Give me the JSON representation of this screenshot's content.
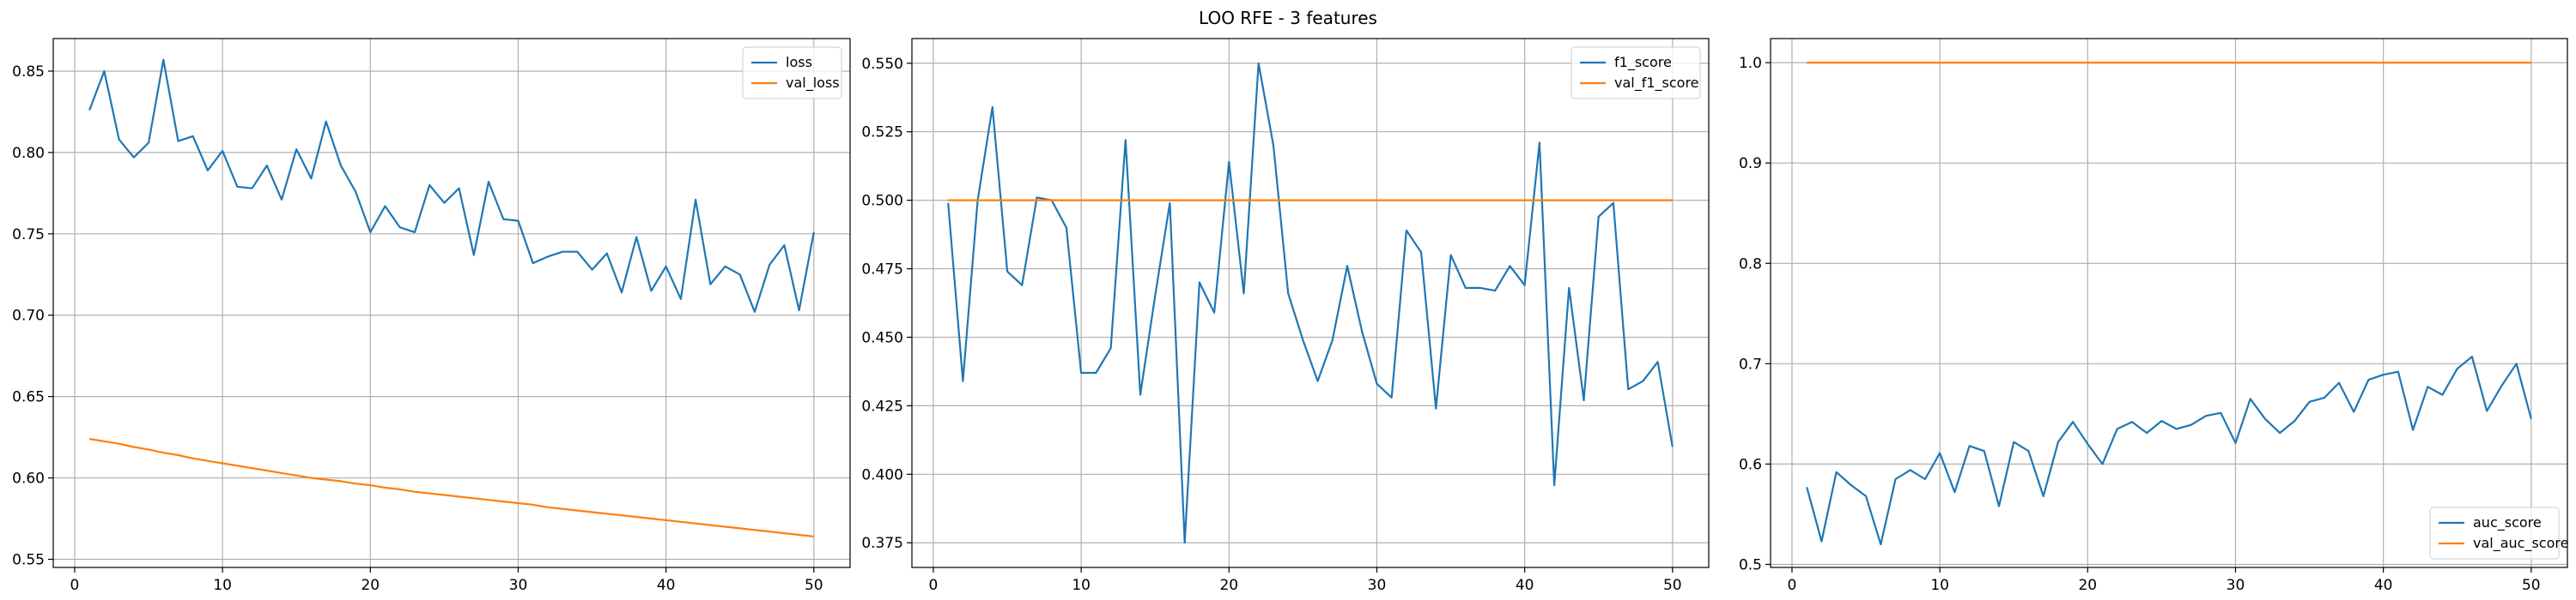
{
  "figure": {
    "title": "LOO RFE - 3 features"
  },
  "colors": {
    "blue": "#1f77b4",
    "orange": "#ff7f0e"
  },
  "chart_data": [
    {
      "type": "line",
      "title": "",
      "xlabel": "",
      "ylabel": "",
      "xlim": [
        -1.45,
        52.45
      ],
      "ylim": [
        0.545,
        0.87
      ],
      "xticks": [
        0,
        10,
        20,
        30,
        40,
        50
      ],
      "yticks": [
        0.55,
        0.6,
        0.65,
        0.7,
        0.75,
        0.8,
        0.85
      ],
      "ytick_labels": [
        "0.55",
        "0.60",
        "0.65",
        "0.70",
        "0.75",
        "0.80",
        "0.85"
      ],
      "grid": true,
      "legend": "top-right",
      "series": [
        {
          "name": "loss",
          "color": "#1f77b4",
          "x": [
            1,
            2,
            3,
            4,
            5,
            6,
            7,
            8,
            9,
            10,
            11,
            12,
            13,
            14,
            15,
            16,
            17,
            18,
            19,
            20,
            21,
            22,
            23,
            24,
            25,
            26,
            27,
            28,
            29,
            30,
            31,
            32,
            33,
            34,
            35,
            36,
            37,
            38,
            39,
            40,
            41,
            42,
            43,
            44,
            45,
            46,
            47,
            48,
            49,
            50
          ],
          "values": [
            0.826,
            0.85,
            0.808,
            0.797,
            0.806,
            0.857,
            0.807,
            0.81,
            0.789,
            0.801,
            0.779,
            0.778,
            0.792,
            0.771,
            0.802,
            0.784,
            0.819,
            0.792,
            0.776,
            0.751,
            0.767,
            0.754,
            0.751,
            0.78,
            0.769,
            0.778,
            0.737,
            0.782,
            0.759,
            0.758,
            0.732,
            0.736,
            0.739,
            0.739,
            0.728,
            0.738,
            0.714,
            0.748,
            0.715,
            0.73,
            0.71,
            0.771,
            0.719,
            0.73,
            0.725,
            0.702,
            0.731,
            0.743,
            0.703,
            0.751
          ]
        },
        {
          "name": "val_loss",
          "color": "#ff7f0e",
          "x": [
            1,
            2,
            3,
            4,
            5,
            6,
            7,
            8,
            9,
            10,
            11,
            12,
            13,
            14,
            15,
            16,
            17,
            18,
            19,
            20,
            21,
            22,
            23,
            24,
            25,
            26,
            27,
            28,
            29,
            30,
            31,
            32,
            33,
            34,
            35,
            36,
            37,
            38,
            39,
            40,
            41,
            42,
            43,
            44,
            45,
            46,
            47,
            48,
            49,
            50
          ],
          "values": [
            0.624,
            0.6225,
            0.621,
            0.619,
            0.6175,
            0.6155,
            0.614,
            0.612,
            0.6105,
            0.609,
            0.6075,
            0.606,
            0.6045,
            0.603,
            0.6015,
            0.6,
            0.599,
            0.598,
            0.5965,
            0.5955,
            0.594,
            0.593,
            0.5915,
            0.5905,
            0.5895,
            0.5885,
            0.5875,
            0.5865,
            0.5855,
            0.5845,
            0.5835,
            0.582,
            0.581,
            0.58,
            0.579,
            0.578,
            0.577,
            0.576,
            0.575,
            0.574,
            0.573,
            0.572,
            0.571,
            0.57,
            0.569,
            0.568,
            0.567,
            0.566,
            0.565,
            0.564
          ]
        }
      ]
    },
    {
      "type": "line",
      "title": "",
      "xlabel": "",
      "ylabel": "",
      "xlim": [
        -1.45,
        52.45
      ],
      "ylim": [
        0.366,
        0.559
      ],
      "xticks": [
        0,
        10,
        20,
        30,
        40,
        50
      ],
      "yticks": [
        0.375,
        0.4,
        0.425,
        0.45,
        0.475,
        0.5,
        0.525,
        0.55
      ],
      "ytick_labels": [
        "0.375",
        "0.400",
        "0.425",
        "0.450",
        "0.475",
        "0.500",
        "0.525",
        "0.550"
      ],
      "grid": true,
      "legend": "top-right",
      "series": [
        {
          "name": "f1_score",
          "color": "#1f77b4",
          "x": [
            1,
            2,
            3,
            4,
            5,
            6,
            7,
            8,
            9,
            10,
            11,
            12,
            13,
            14,
            15,
            16,
            17,
            18,
            19,
            20,
            21,
            22,
            23,
            24,
            25,
            26,
            27,
            28,
            29,
            30,
            31,
            32,
            33,
            34,
            35,
            36,
            37,
            38,
            39,
            40,
            41,
            42,
            43,
            44,
            45,
            46,
            47,
            48,
            49,
            50
          ],
          "values": [
            0.499,
            0.434,
            0.5,
            0.534,
            0.474,
            0.469,
            0.501,
            0.5,
            0.49,
            0.437,
            0.437,
            0.446,
            0.522,
            0.429,
            0.465,
            0.499,
            0.375,
            0.47,
            0.459,
            0.514,
            0.466,
            0.55,
            0.52,
            0.466,
            0.449,
            0.434,
            0.449,
            0.476,
            0.452,
            0.433,
            0.428,
            0.489,
            0.481,
            0.424,
            0.48,
            0.468,
            0.468,
            0.467,
            0.476,
            0.469,
            0.521,
            0.396,
            0.468,
            0.427,
            0.494,
            0.499,
            0.431,
            0.434,
            0.441,
            0.41
          ]
        },
        {
          "name": "val_f1_score",
          "color": "#ff7f0e",
          "x": [
            1,
            2,
            3,
            4,
            5,
            6,
            7,
            8,
            9,
            10,
            11,
            12,
            13,
            14,
            15,
            16,
            17,
            18,
            19,
            20,
            21,
            22,
            23,
            24,
            25,
            26,
            27,
            28,
            29,
            30,
            31,
            32,
            33,
            34,
            35,
            36,
            37,
            38,
            39,
            40,
            41,
            42,
            43,
            44,
            45,
            46,
            47,
            48,
            49,
            50
          ],
          "values": [
            0.5,
            0.5,
            0.5,
            0.5,
            0.5,
            0.5,
            0.5,
            0.5,
            0.5,
            0.5,
            0.5,
            0.5,
            0.5,
            0.5,
            0.5,
            0.5,
            0.5,
            0.5,
            0.5,
            0.5,
            0.5,
            0.5,
            0.5,
            0.5,
            0.5,
            0.5,
            0.5,
            0.5,
            0.5,
            0.5,
            0.5,
            0.5,
            0.5,
            0.5,
            0.5,
            0.5,
            0.5,
            0.5,
            0.5,
            0.5,
            0.5,
            0.5,
            0.5,
            0.5,
            0.5,
            0.5,
            0.5,
            0.5,
            0.5,
            0.5
          ]
        }
      ]
    },
    {
      "type": "line",
      "title": "",
      "xlabel": "",
      "ylabel": "",
      "xlim": [
        -1.45,
        52.45
      ],
      "ylim": [
        0.497,
        1.024
      ],
      "xticks": [
        0,
        10,
        20,
        30,
        40,
        50
      ],
      "yticks": [
        0.5,
        0.6,
        0.7,
        0.8,
        0.9,
        1.0
      ],
      "ytick_labels": [
        "0.5",
        "0.6",
        "0.7",
        "0.8",
        "0.9",
        "1.0"
      ],
      "grid": true,
      "legend": "bottom-right",
      "series": [
        {
          "name": "auc_score",
          "color": "#1f77b4",
          "x": [
            1,
            2,
            3,
            4,
            5,
            6,
            7,
            8,
            9,
            10,
            11,
            12,
            13,
            14,
            15,
            16,
            17,
            18,
            19,
            20,
            21,
            22,
            23,
            24,
            25,
            26,
            27,
            28,
            29,
            30,
            31,
            32,
            33,
            34,
            35,
            36,
            37,
            38,
            39,
            40,
            41,
            42,
            43,
            44,
            45,
            46,
            47,
            48,
            49,
            50
          ],
          "values": [
            0.577,
            0.523,
            0.592,
            0.579,
            0.568,
            0.52,
            0.585,
            0.594,
            0.585,
            0.611,
            0.572,
            0.618,
            0.613,
            0.558,
            0.622,
            0.613,
            0.568,
            0.622,
            0.642,
            0.62,
            0.6,
            0.635,
            0.642,
            0.631,
            0.643,
            0.635,
            0.639,
            0.648,
            0.651,
            0.621,
            0.665,
            0.645,
            0.631,
            0.643,
            0.662,
            0.666,
            0.681,
            0.652,
            0.684,
            0.689,
            0.692,
            0.634,
            0.677,
            0.669,
            0.695,
            0.707,
            0.653,
            0.678,
            0.7,
            0.645
          ]
        },
        {
          "name": "val_auc_score",
          "color": "#ff7f0e",
          "x": [
            1,
            2,
            3,
            4,
            5,
            6,
            7,
            8,
            9,
            10,
            11,
            12,
            13,
            14,
            15,
            16,
            17,
            18,
            19,
            20,
            21,
            22,
            23,
            24,
            25,
            26,
            27,
            28,
            29,
            30,
            31,
            32,
            33,
            34,
            35,
            36,
            37,
            38,
            39,
            40,
            41,
            42,
            43,
            44,
            45,
            46,
            47,
            48,
            49,
            50
          ],
          "values": [
            1.0,
            1.0,
            1.0,
            1.0,
            1.0,
            1.0,
            1.0,
            1.0,
            1.0,
            1.0,
            1.0,
            1.0,
            1.0,
            1.0,
            1.0,
            1.0,
            1.0,
            1.0,
            1.0,
            1.0,
            1.0,
            1.0,
            1.0,
            1.0,
            1.0,
            1.0,
            1.0,
            1.0,
            1.0,
            1.0,
            1.0,
            1.0,
            1.0,
            1.0,
            1.0,
            1.0,
            1.0,
            1.0,
            1.0,
            1.0,
            1.0,
            1.0,
            1.0,
            1.0,
            1.0,
            1.0,
            1.0,
            1.0,
            1.0,
            1.0
          ]
        }
      ]
    }
  ]
}
